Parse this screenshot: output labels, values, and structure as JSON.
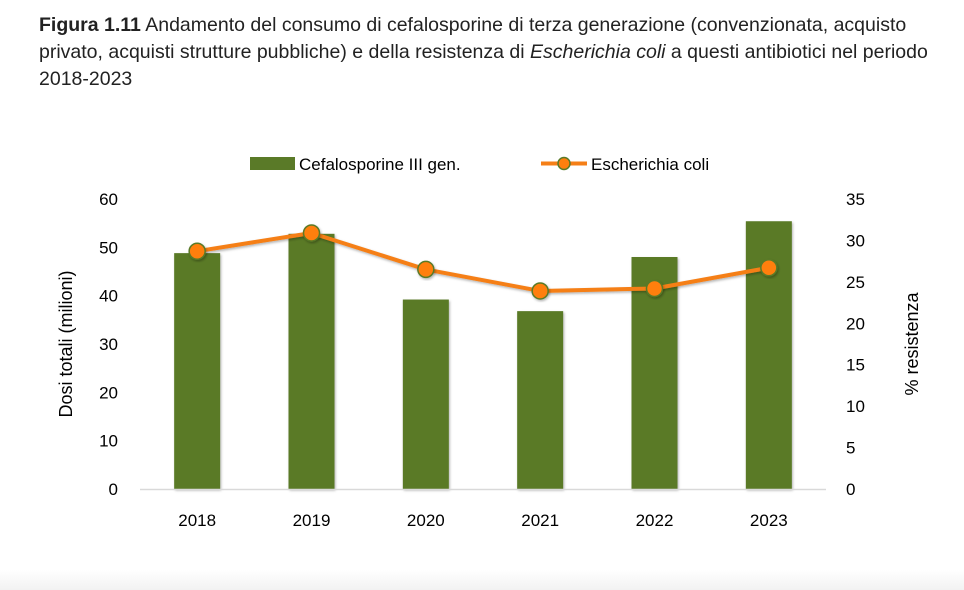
{
  "caption": {
    "label": "Figura 1.11",
    "text_part1": " Andamento del consumo di cefalosporine di terza generazione (convenzionata, acquisto privato, acquisti strutture pubbliche) e della resistenza di ",
    "italic": "Escherichia coli",
    "text_part2": " a questi antibiotici nel periodo 2018-2023"
  },
  "colors": {
    "bar": "#5a7a28",
    "line": "#f57f17",
    "marker_fill": "#ff7f0e",
    "marker_edge": "#5a7a28",
    "axis": "#d9d9d9"
  },
  "chart_data": {
    "type": "bar",
    "title": "Andamento del consumo di cefalosporine di terza generazione e della resistenza di Escherichia coli, 2018-2023",
    "categories": [
      "2018",
      "2019",
      "2020",
      "2021",
      "2022",
      "2023"
    ],
    "series": [
      {
        "name": "Cefalosporine III gen.",
        "type": "bar",
        "axis": "left",
        "values": [
          48.8,
          52.8,
          39.2,
          36.8,
          48.0,
          55.4
        ]
      },
      {
        "name": "Escherichia coli",
        "type": "line",
        "axis": "right",
        "values": [
          28.7,
          30.9,
          26.5,
          23.9,
          24.2,
          26.7
        ]
      }
    ],
    "xlabel": "",
    "ylabel": "Dosi totali (milioni)",
    "ylabel_right": "% resistenza",
    "ylim": [
      0,
      60
    ],
    "ylim_right": [
      0,
      35
    ],
    "yticks": [
      "0",
      "10",
      "20",
      "30",
      "40",
      "50",
      "60"
    ],
    "yticks_right": [
      "0",
      "5",
      "10",
      "15",
      "20",
      "25",
      "30",
      "35"
    ],
    "grid": false,
    "legend": "top-center"
  }
}
